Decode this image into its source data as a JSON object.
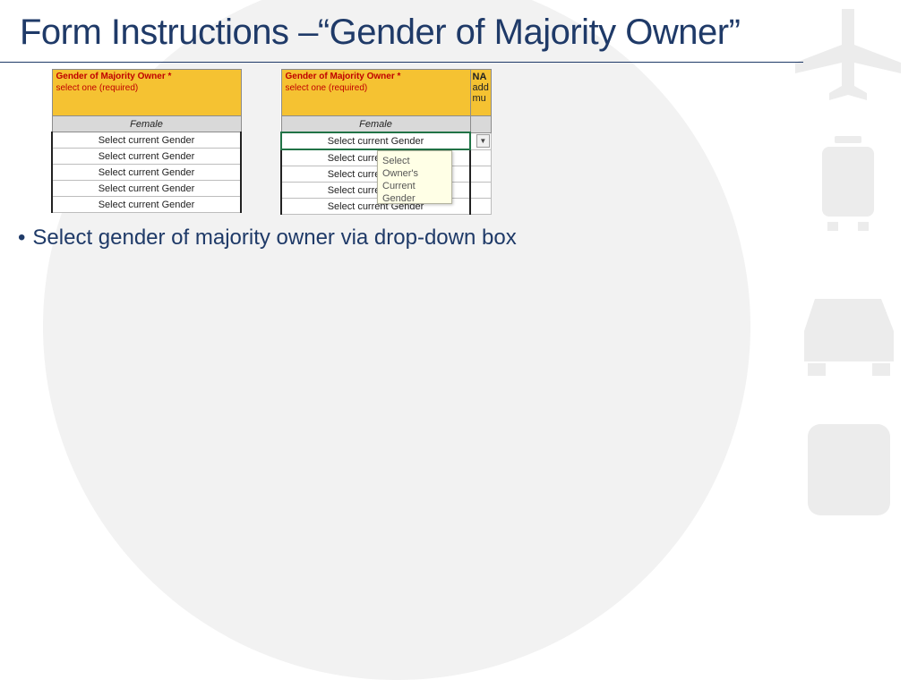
{
  "title": "Form Instructions –“Gender of Majority Owner”",
  "bullets": [
    "Select gender of majority owner via drop-down box"
  ],
  "left_sheet": {
    "header_title": "Gender of Majority Owner *",
    "header_sub": "select one (required)",
    "subheader": "Female",
    "rows": [
      "Select current Gender",
      "Select current Gender",
      "Select current Gender",
      "Select current Gender",
      "Select current Gender"
    ]
  },
  "right_sheet": {
    "header_title": "Gender of Majority Owner *",
    "header_sub": "select one (required)",
    "subheader": "Female",
    "rows": [
      "Select current Gender",
      "Select current Gender",
      "Select current Gender",
      "Select current Gender",
      "Select current Gender"
    ],
    "next_header": [
      "NA",
      "add",
      "mu"
    ],
    "dropdown_icon": "chevron-down-icon",
    "tooltip_lines": [
      "Select Owner's",
      "Current Gender"
    ]
  },
  "colors": {
    "title": "#1f3a68",
    "header_fill": "#f5c232",
    "header_text": "#c00000",
    "active_cell": "#217346",
    "tooltip_fill": "#ffffe6"
  },
  "decor_icons": [
    "airplane-icon",
    "train-icon",
    "car-icon",
    "bus-icon"
  ]
}
